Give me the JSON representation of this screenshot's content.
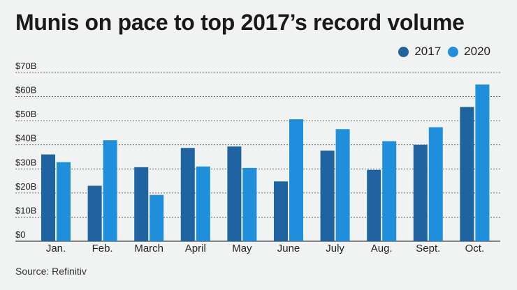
{
  "title": "Munis on pace to top 2017’s record volume",
  "source": "Source: Refinitiv",
  "colors": {
    "s2017": "#1f64a0",
    "s2020": "#1f8fdc",
    "grid": "#444444"
  },
  "chart_data": {
    "type": "bar",
    "title": "Munis on pace to top 2017’s record volume",
    "categories": [
      "Jan.",
      "Feb.",
      "March",
      "April",
      "May",
      "June",
      "July",
      "Aug.",
      "Sept.",
      "Oct."
    ],
    "series": [
      {
        "name": "2017",
        "values": [
          36,
          23,
          30.7,
          38.7,
          39.3,
          24.8,
          37.6,
          29.6,
          40,
          55.7
        ]
      },
      {
        "name": "2020",
        "values": [
          32.8,
          41.9,
          19.2,
          31,
          30.4,
          50.6,
          46.5,
          41.5,
          47.3,
          65
        ]
      }
    ],
    "ylim": [
      0,
      70
    ],
    "yticks": [
      0,
      10,
      20,
      30,
      40,
      50,
      60,
      70
    ],
    "ytick_labels": [
      "$0",
      "$10B",
      "$20B",
      "$30B",
      "$40B",
      "$50B",
      "$60B",
      "$70B"
    ],
    "legend": "top-right",
    "grid": true
  }
}
